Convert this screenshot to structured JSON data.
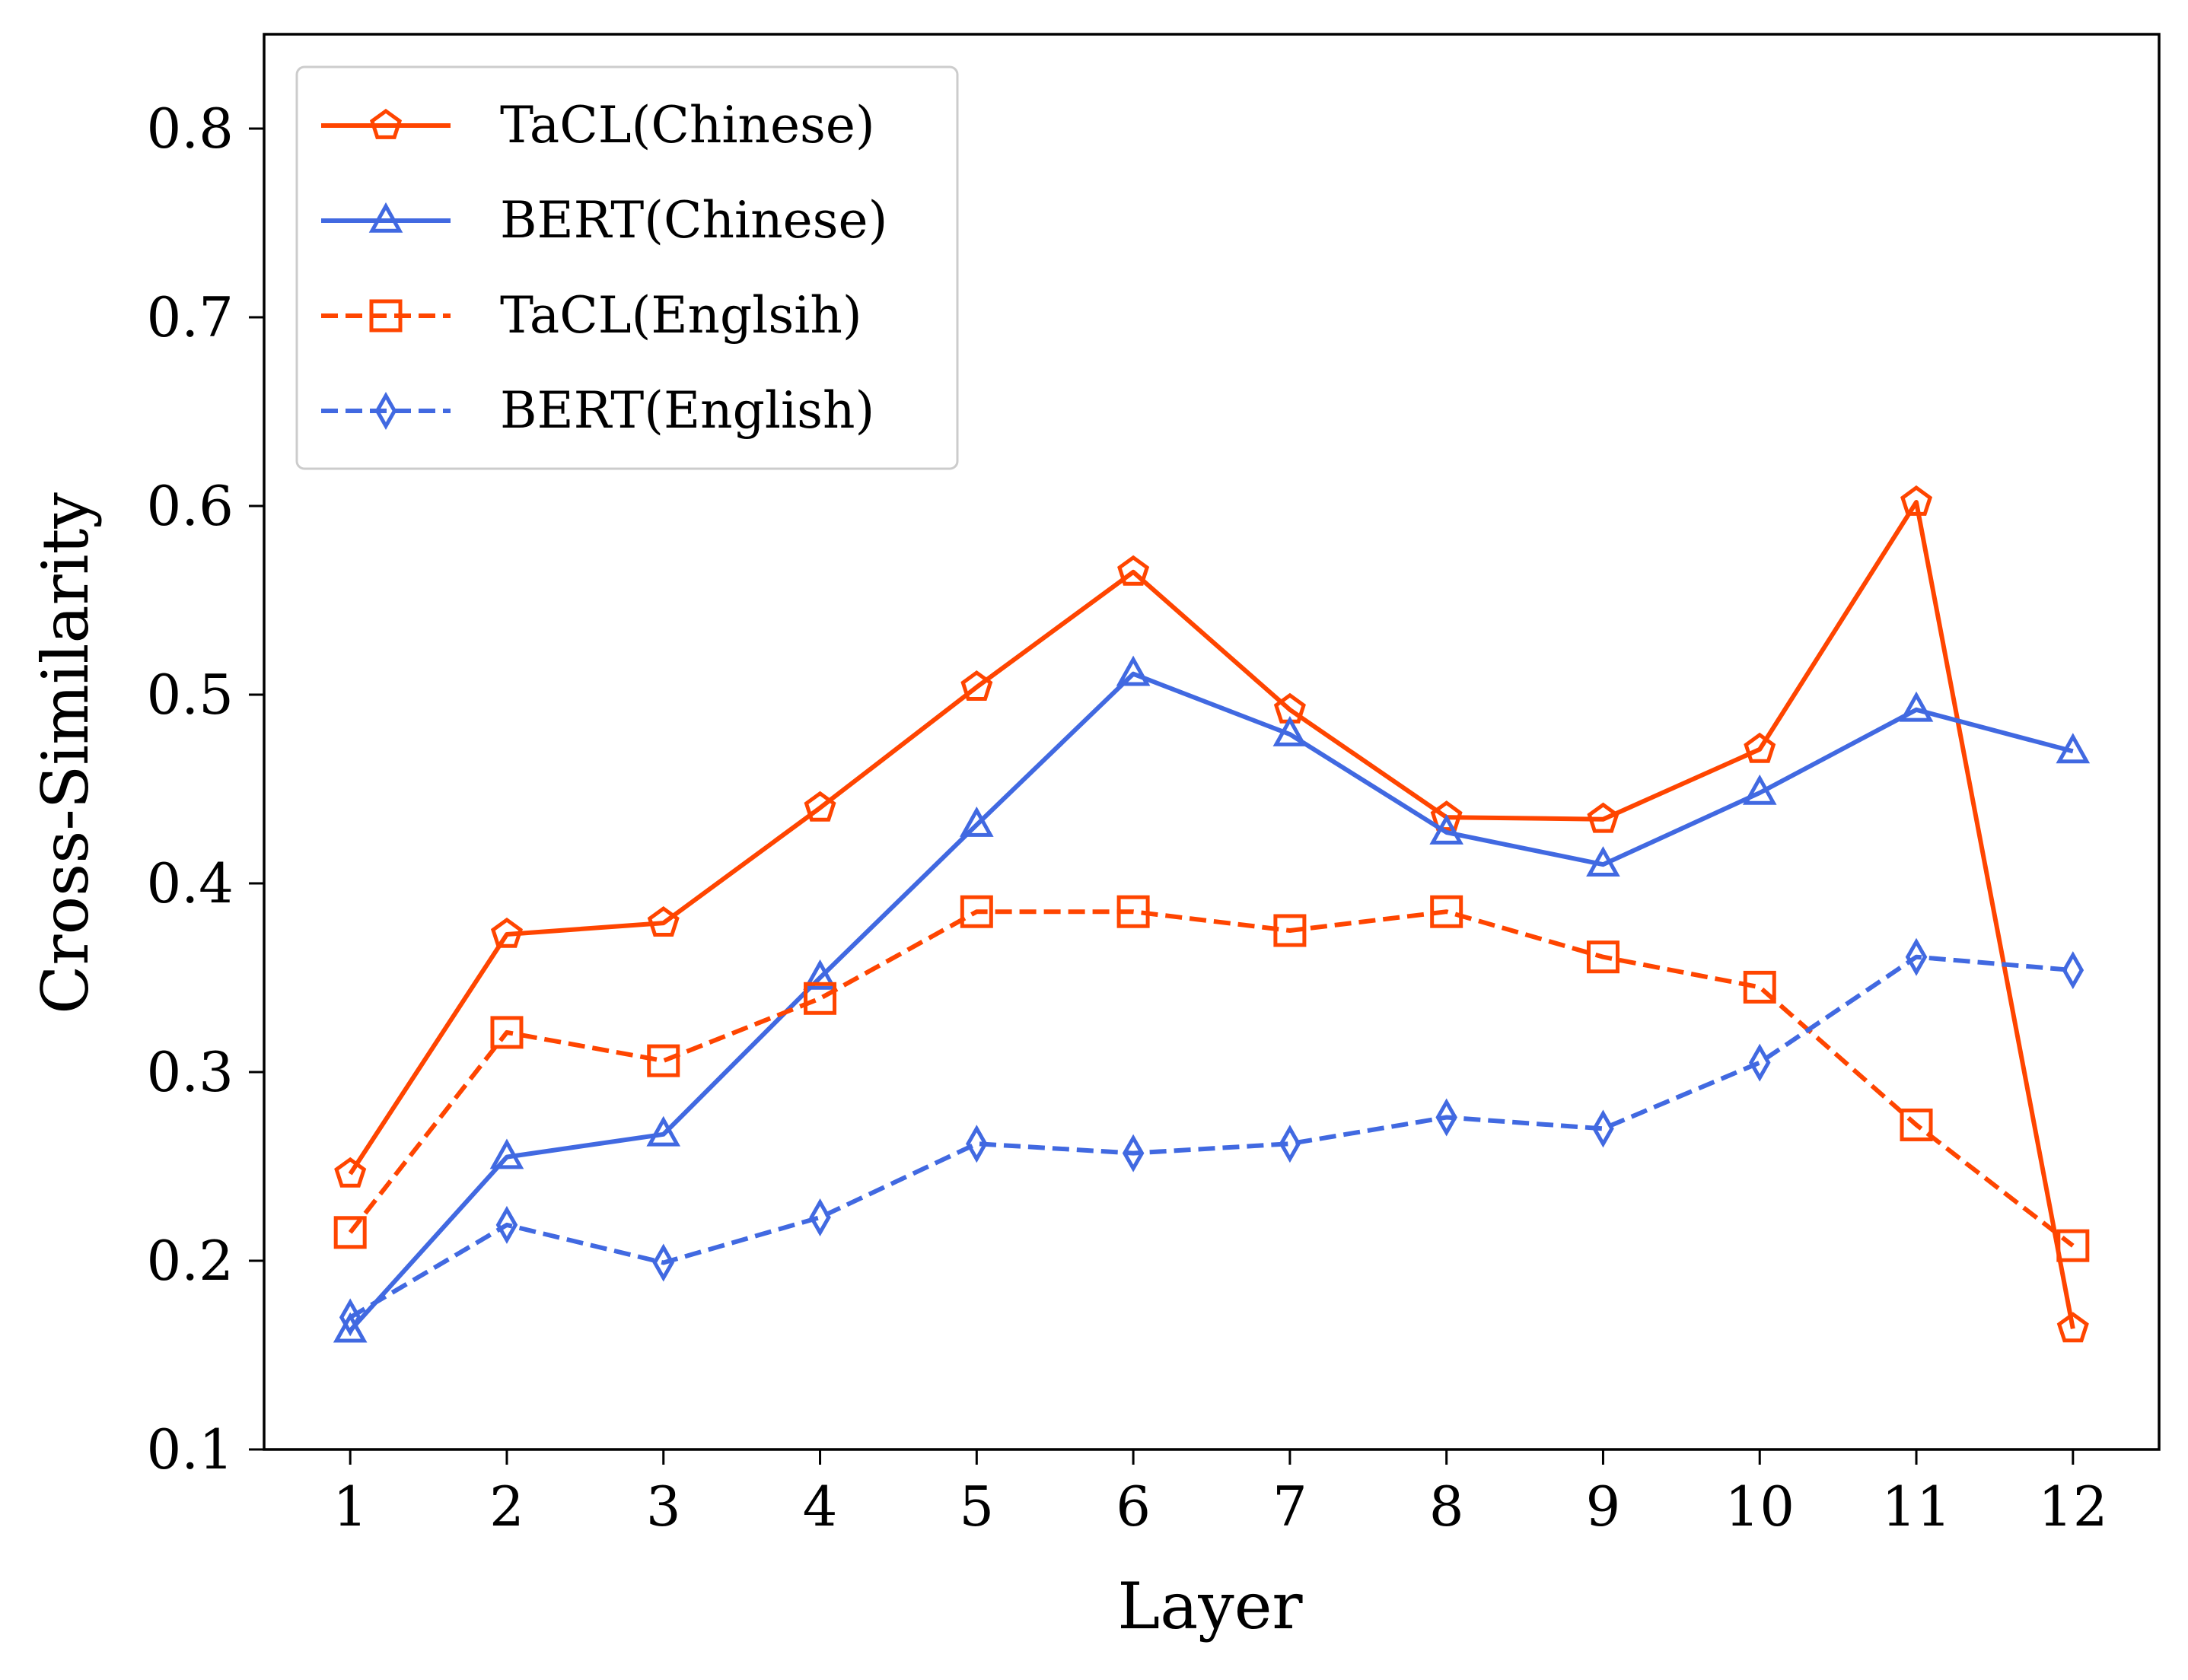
{
  "chart_data": {
    "type": "line",
    "title": "",
    "xlabel": "Layer",
    "ylabel": "Cross-Similarity",
    "x": [
      1,
      2,
      3,
      4,
      5,
      6,
      7,
      8,
      9,
      10,
      11,
      12
    ],
    "xticks": [
      "1",
      "2",
      "3",
      "4",
      "5",
      "6",
      "7",
      "8",
      "9",
      "10",
      "11",
      "12"
    ],
    "ylim": [
      0.1,
      0.85
    ],
    "yticks": [
      "0.1",
      "0.2",
      "0.3",
      "0.4",
      "0.5",
      "0.6",
      "0.7",
      "0.8"
    ],
    "grid": false,
    "legend_position": "top-left",
    "series": [
      {
        "name": "TaCL(Chinese)",
        "color": "#FF4500",
        "linestyle": "solid",
        "marker": "pentagon",
        "values": [
          0.246,
          0.373,
          0.379,
          0.44,
          0.504,
          0.565,
          0.492,
          0.435,
          0.434,
          0.471,
          0.602,
          0.164
        ]
      },
      {
        "name": "BERT(Chinese)",
        "color": "#4169E1",
        "linestyle": "solid",
        "marker": "triangle",
        "values": [
          0.163,
          0.255,
          0.267,
          0.35,
          0.431,
          0.511,
          0.479,
          0.427,
          0.41,
          0.448,
          0.492,
          0.47
        ]
      },
      {
        "name": "TaCL(Englsih)",
        "color": "#FF4500",
        "linestyle": "dashed",
        "marker": "square",
        "values": [
          0.215,
          0.321,
          0.306,
          0.339,
          0.385,
          0.385,
          0.375,
          0.385,
          0.361,
          0.345,
          0.272,
          0.208
        ]
      },
      {
        "name": "BERT(English)",
        "color": "#4169E1",
        "linestyle": "dashed",
        "marker": "diamond",
        "values": [
          0.17,
          0.219,
          0.199,
          0.223,
          0.262,
          0.257,
          0.262,
          0.276,
          0.27,
          0.305,
          0.361,
          0.354
        ]
      }
    ]
  }
}
